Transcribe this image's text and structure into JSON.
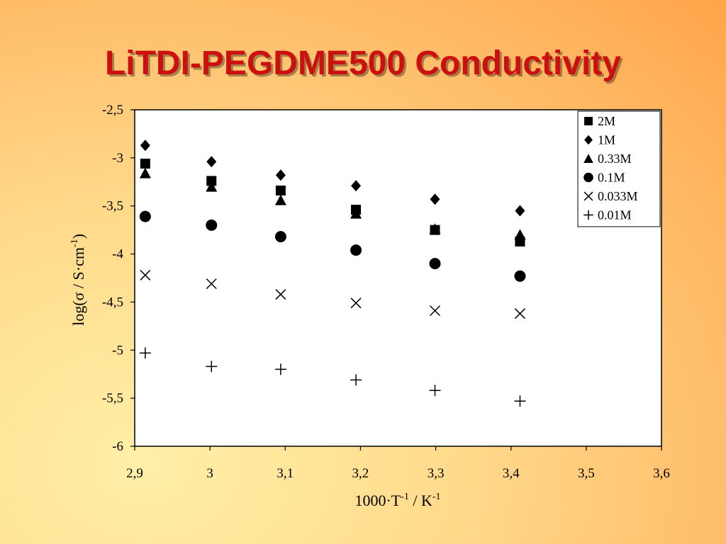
{
  "title": "LiTDI-PEGDME500 Conductivity",
  "chart_data": {
    "type": "scatter",
    "title": "LiTDI-PEGDME500 Conductivity",
    "xlabel": "1000·T-1 / K-1",
    "ylabel": "log(σ / S·cm-1)",
    "xlim": [
      2.9,
      3.6
    ],
    "ylim": [
      -6,
      -2.5
    ],
    "x_ticks": [
      "2,9",
      "3",
      "3,1",
      "3,2",
      "3,3",
      "3,4",
      "3,5",
      "3,6"
    ],
    "y_ticks": [
      "-2,5",
      "-3",
      "-3,5",
      "-4",
      "-4,5",
      "-5",
      "-5,5",
      "-6"
    ],
    "grid": false,
    "legend_position": "top-right",
    "series": [
      {
        "name": "2M",
        "marker": "square",
        "x": [
          2.914,
          3.002,
          3.094,
          3.194,
          3.299,
          3.412
        ],
        "y": [
          -3.06,
          -3.24,
          -3.34,
          -3.54,
          -3.75,
          -3.87
        ]
      },
      {
        "name": "1M",
        "marker": "diamond",
        "x": [
          2.914,
          3.002,
          3.094,
          3.194,
          3.299,
          3.412
        ],
        "y": [
          -2.87,
          -3.04,
          -3.18,
          -3.29,
          -3.43,
          -3.55
        ]
      },
      {
        "name": "0.33M",
        "marker": "triangle",
        "x": [
          2.914,
          3.002,
          3.094,
          3.194,
          3.299,
          3.412
        ],
        "y": [
          -3.16,
          -3.3,
          -3.44,
          -3.58,
          -3.74,
          -3.8
        ]
      },
      {
        "name": "0.1M",
        "marker": "circle",
        "x": [
          2.914,
          3.002,
          3.094,
          3.194,
          3.299,
          3.412
        ],
        "y": [
          -3.61,
          -3.7,
          -3.82,
          -3.96,
          -4.1,
          -4.23
        ]
      },
      {
        "name": "0.033M",
        "marker": "x",
        "x": [
          2.914,
          3.002,
          3.094,
          3.194,
          3.299,
          3.412
        ],
        "y": [
          -4.22,
          -4.31,
          -4.42,
          -4.51,
          -4.59,
          -4.62
        ]
      },
      {
        "name": "0.01M",
        "marker": "plus",
        "x": [
          2.914,
          3.002,
          3.094,
          3.194,
          3.299,
          3.412
        ],
        "y": [
          -5.03,
          -5.17,
          -5.2,
          -5.31,
          -5.42,
          -5.53
        ]
      }
    ]
  }
}
